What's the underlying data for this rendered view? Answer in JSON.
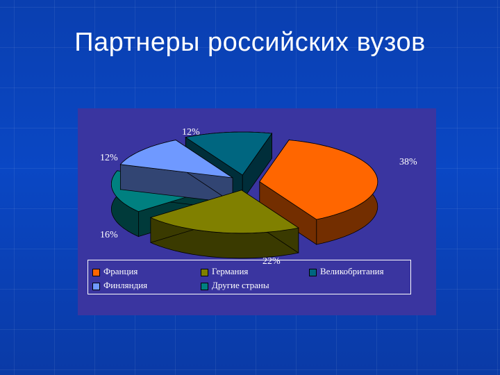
{
  "slide": {
    "title": "Партнеры российских вузов"
  },
  "chart_data": {
    "type": "pie",
    "title": "",
    "categories": [
      "Франция",
      "Германия",
      "Великобритания",
      "Финляндия",
      "Другие страны"
    ],
    "values": [
      38,
      22,
      12,
      12,
      16
    ],
    "labels": [
      "38%",
      "22%",
      "12%",
      "12%",
      "16%"
    ],
    "colors": [
      "#ff6600",
      "#808000",
      "#006680",
      "#6f99ff",
      "#008080"
    ],
    "legend_position": "bottom",
    "three_d": true,
    "exploded": true
  }
}
